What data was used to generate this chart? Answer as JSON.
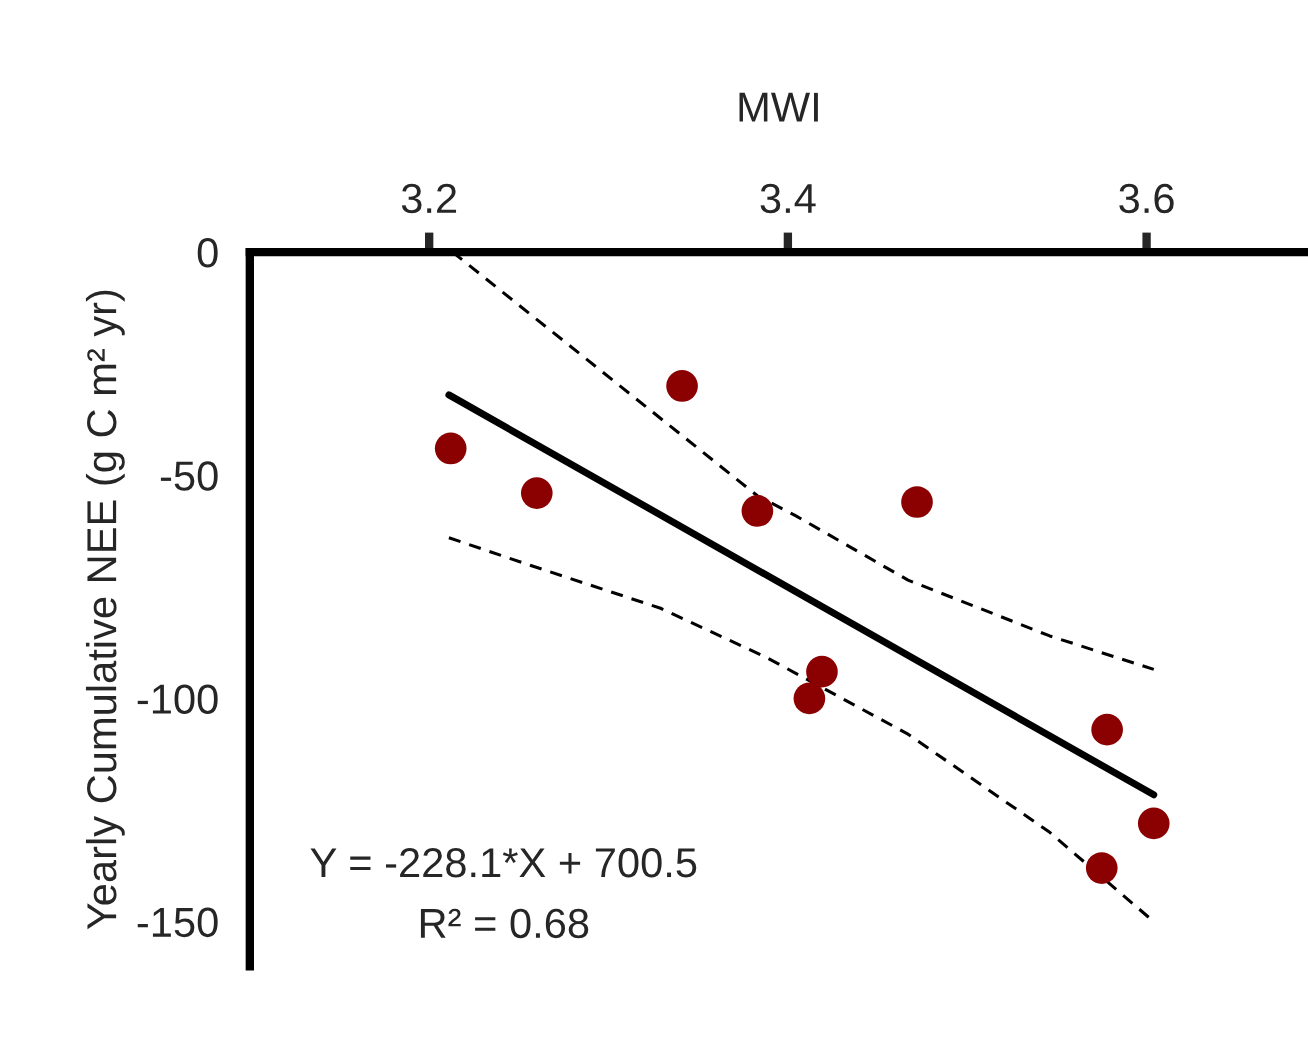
{
  "chart_data": {
    "type": "scatter",
    "xlabel": "MWI",
    "ylabel": "Yearly Cumulative NEE (g C m² yr)",
    "xlim": [
      3.1,
      3.69
    ],
    "xticks": [
      3.2,
      3.4,
      3.6
    ],
    "ylim": [
      -160,
      0
    ],
    "yticks": [
      0,
      -50,
      -100,
      -150
    ],
    "grid": false,
    "legend": false,
    "marker": "circle",
    "series": [
      {
        "color": "#8b0000",
        "x": [
          3.212,
          3.26,
          3.341,
          3.383,
          3.472,
          3.419,
          3.412,
          3.578,
          3.604,
          3.575
        ],
        "values": [
          -44,
          -54,
          -30,
          -58,
          -56,
          -94,
          -100,
          -107,
          -128,
          -138
        ]
      },
      {
        "type": "line",
        "color": "#000000",
        "line_style": "solid",
        "marker": "none",
        "x": [
          3.211,
          3.604
        ],
        "values": [
          -32,
          -121.6
        ]
      },
      {
        "type": "line",
        "color": "#000000",
        "line_style": "dashed",
        "marker": "none",
        "x": [
          3.213,
          3.383,
          3.404,
          3.467,
          3.546,
          3.604
        ],
        "values": [
          0,
          -54.6,
          -59,
          -73.5,
          -86,
          -93.5
        ]
      },
      {
        "type": "line",
        "color": "#000000",
        "line_style": "dashed",
        "marker": "none",
        "x": [
          3.211,
          3.258,
          3.329,
          3.388,
          3.467,
          3.546,
          3.604
        ],
        "values": [
          -64,
          -70.4,
          -79.8,
          -90.8,
          -108,
          -130,
          -150
        ]
      }
    ],
    "annotations": [
      "Y = -228.1*X + 700.5",
      "R² = 0.68"
    ]
  }
}
